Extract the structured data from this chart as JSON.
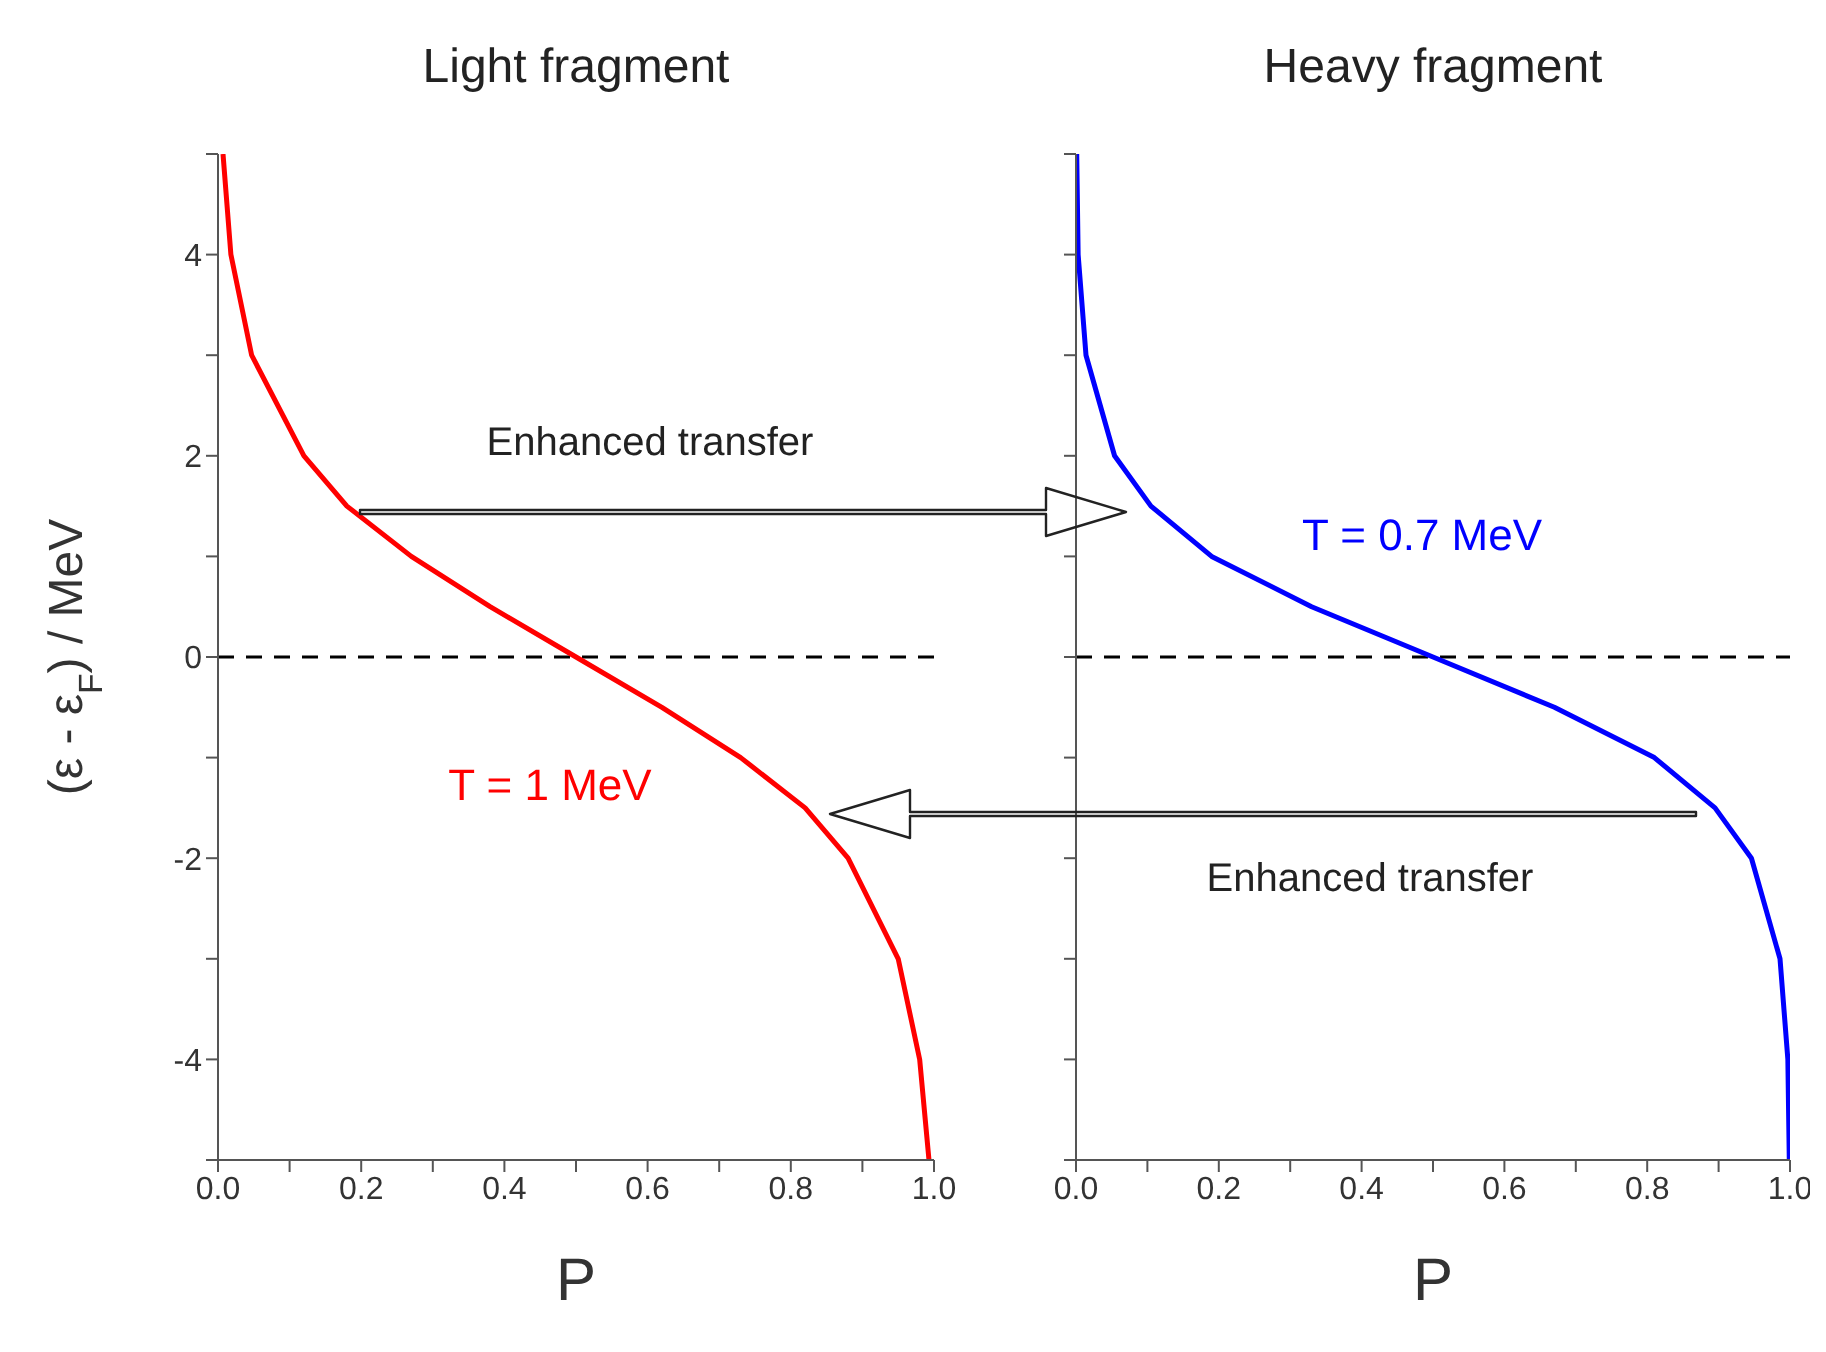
{
  "chart_data": [
    {
      "type": "line",
      "title": "Light fragment",
      "xlabel": "P",
      "ylabel": "(ε - ε$_{F}$) / MeV",
      "xlim": [
        0,
        1
      ],
      "ylim": [
        -5,
        5
      ],
      "xticks": [
        {
          "value": 0,
          "label": "0.0"
        },
        {
          "value": 0.1,
          "label": null
        },
        {
          "value": 0.2,
          "label": "0.2"
        },
        {
          "value": 0.3,
          "label": null
        },
        {
          "value": 0.4,
          "label": "0.4"
        },
        {
          "value": 0.5,
          "label": null
        },
        {
          "value": 0.6,
          "label": "0.6"
        },
        {
          "value": 0.7,
          "label": null
        },
        {
          "value": 0.8,
          "label": "0.8"
        },
        {
          "value": 0.9,
          "label": null
        },
        {
          "value": 1,
          "label": "1.0"
        }
      ],
      "yticks": [
        {
          "value": -5,
          "label": null
        },
        -4,
        {
          "value": -3,
          "label": null
        },
        -2,
        {
          "value": -1,
          "label": null
        },
        0,
        {
          "value": 1,
          "label": null
        },
        2,
        {
          "value": 3,
          "label": null
        },
        4,
        {
          "value": 5,
          "label": null
        }
      ],
      "series": [
        {
          "name": "T = 1 MeV",
          "color": "#ff0000",
          "x": [
            0.007,
            0.018,
            0.047,
            0.12,
            0.18,
            0.27,
            0.38,
            0.5,
            0.62,
            0.73,
            0.82,
            0.88,
            0.95,
            0.98,
            0.993
          ],
          "values": [
            5,
            4,
            3,
            2,
            1.5,
            1,
            0.5,
            0,
            -0.5,
            -1,
            -1.5,
            -2,
            -3,
            -4,
            -5
          ]
        }
      ],
      "ref_lines": [
        {
          "axis": "y",
          "value": 0,
          "color": "#000000",
          "line_style": "dashed"
        }
      ],
      "annotations": [
        "Enhanced transfer"
      ],
      "grid": false,
      "legend": false,
      "marker": "none",
      "line_style": "solid"
    },
    {
      "type": "line",
      "title": "Heavy fragment",
      "xlabel": "P",
      "xlim": [
        0,
        1
      ],
      "ylim": [
        -5,
        5
      ],
      "xticks": [
        {
          "value": 0,
          "label": "0.0"
        },
        {
          "value": 0.1,
          "label": null
        },
        {
          "value": 0.2,
          "label": "0.2"
        },
        {
          "value": 0.3,
          "label": null
        },
        {
          "value": 0.4,
          "label": "0.4"
        },
        {
          "value": 0.5,
          "label": null
        },
        {
          "value": 0.6,
          "label": "0.6"
        },
        {
          "value": 0.7,
          "label": null
        },
        {
          "value": 0.8,
          "label": "0.8"
        },
        {
          "value": 0.9,
          "label": null
        },
        {
          "value": 1,
          "label": "1.0"
        }
      ],
      "yticks": [
        {
          "value": -5,
          "label": null
        },
        -4,
        {
          "value": -3,
          "label": null
        },
        -2,
        {
          "value": -1,
          "label": null
        },
        0,
        {
          "value": 1,
          "label": null
        },
        2,
        {
          "value": 3,
          "label": null
        },
        4,
        {
          "value": 5,
          "label": null
        }
      ],
      "tick_labels": "x",
      "series": [
        {
          "name": "T = 0.7 MeV",
          "color": "#0000ff",
          "x": [
            0.001,
            0.003,
            0.014,
            0.054,
            0.105,
            0.19,
            0.33,
            0.5,
            0.67,
            0.81,
            0.895,
            0.946,
            0.986,
            0.997,
            0.999
          ],
          "values": [
            5,
            4,
            3,
            2,
            1.5,
            1,
            0.5,
            0,
            -0.5,
            -1,
            -1.5,
            -2,
            -3,
            -4,
            -5
          ]
        }
      ],
      "ref_lines": [
        {
          "axis": "y",
          "value": 0,
          "color": "#000000",
          "line_style": "dashed"
        }
      ],
      "annotations": [
        "Enhanced transfer"
      ],
      "grid": false,
      "legend": false,
      "marker": "none",
      "line_style": "solid"
    }
  ]
}
